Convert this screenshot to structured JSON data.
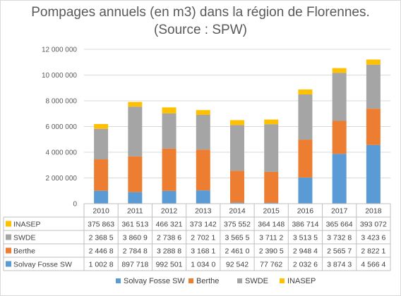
{
  "chart_data": {
    "type": "bar",
    "stacked": true,
    "title": "Pompages annuels (en m3) dans la région de Florennes.",
    "subtitle": "(Source : SPW)",
    "categories": [
      "2010",
      "2011",
      "2012",
      "2013",
      "2014",
      "2015",
      "2016",
      "2017",
      "2018"
    ],
    "y_ticks": [
      "0",
      "2 000 000",
      "4 000 000",
      "6 000 000",
      "8 000 000",
      "10 000 000",
      "12 000 000"
    ],
    "ylim": [
      0,
      12000000
    ],
    "grid": true,
    "legend_position": "bottom",
    "table_row_order": [
      "INASEP",
      "SWDE",
      "Berthe",
      "Solvay Fosse SW"
    ],
    "series": [
      {
        "name": "Solvay Fosse SW",
        "color": "#5b9bd5",
        "values": [
          1002800,
          897718,
          992501,
          1034000,
          92542,
          77762,
          2032600,
          3874300,
          4566400
        ],
        "labels": [
          "1 002 8",
          "897 718",
          "992 501",
          "1 034 0",
          "92 542",
          "77 762",
          "2 032 6",
          "3 874 3",
          "4 566 4"
        ]
      },
      {
        "name": "Berthe",
        "color": "#ed7d31",
        "values": [
          2446800,
          2784800,
          3288800,
          3168100,
          2461000,
          2390500,
          2948400,
          2565700,
          2822100
        ],
        "labels": [
          "2 446 8",
          "2 784 8",
          "3 288 8",
          "3 168 1",
          "2 461 0",
          "2 390 5",
          "2 948 4",
          "2 565 7",
          "2 822 1"
        ]
      },
      {
        "name": "SWDE",
        "color": "#a5a5a5",
        "values": [
          2368500,
          3860900,
          2738600,
          2702100,
          3565500,
          3711200,
          3513500,
          3732800,
          3423600
        ],
        "labels": [
          "2 368 5",
          "3 860 9",
          "2 738 6",
          "2 702 1",
          "3 565 5",
          "3 711 2",
          "3 513 5",
          "3 732 8",
          "3 423 6"
        ]
      },
      {
        "name": "INASEP",
        "color": "#ffc000",
        "values": [
          375863,
          361513,
          466321,
          373142,
          375552,
          364148,
          386714,
          365664,
          393072
        ],
        "labels": [
          "375 863",
          "361 513",
          "466 321",
          "373 142",
          "375 552",
          "364 148",
          "386 714",
          "365 664",
          "393 072"
        ]
      }
    ]
  }
}
